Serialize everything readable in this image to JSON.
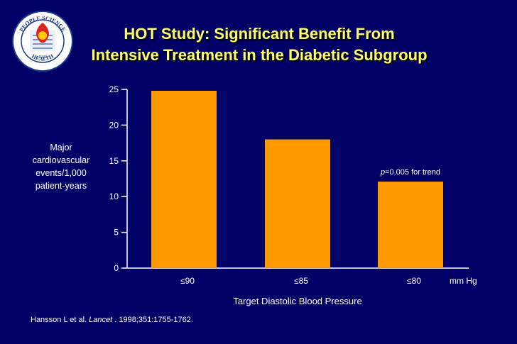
{
  "title_line1": "HOT Study: Significant Benefit From",
  "title_line2": "Intensive Treatment in the Diabetic Subgroup",
  "logo": {
    "top_text": "PEOPLE SCIENCE",
    "bottom_text": "HEALTH",
    "year_text": "1948"
  },
  "colors": {
    "background": "#000066",
    "title": "#ffff66",
    "bar": "#ff9900",
    "text": "#ffffff"
  },
  "chart_data": {
    "type": "bar",
    "categories": [
      "≤90",
      "≤85",
      "≤80"
    ],
    "values": [
      24.8,
      18.0,
      12.1
    ],
    "ylim": [
      0,
      25
    ],
    "yticks": [
      "0",
      "5",
      "10",
      "15",
      "20",
      "25"
    ],
    "ylabel_lines": [
      "Major",
      "cardiovascular",
      "events/1,000",
      "patient-years"
    ],
    "xlabel": "Target Diastolic Blood Pressure",
    "x_unit": "mm Hg",
    "annotation_p": "p",
    "annotation_rest": "=0.005 for trend"
  },
  "citation": {
    "authors": "Hansson L et al. ",
    "journal": "Lancet",
    "details": ". 1998;351:1755-1762."
  }
}
